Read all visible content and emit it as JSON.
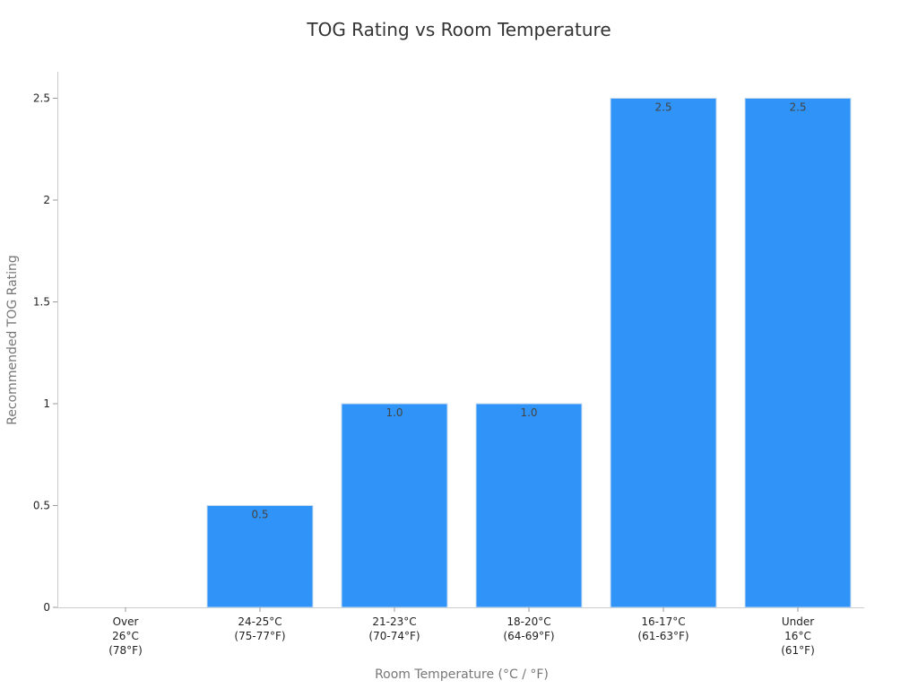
{
  "chart_data": {
    "type": "bar",
    "title": "TOG Rating vs Room Temperature",
    "xlabel": "Room Temperature (°C / °F)",
    "ylabel": "Recommended TOG Rating",
    "categories": [
      [
        "Over",
        "26°C",
        "(78°F)"
      ],
      [
        "24-25°C",
        "(75-77°F)"
      ],
      [
        "21-23°C",
        "(70-74°F)"
      ],
      [
        "18-20°C",
        "(64-69°F)"
      ],
      [
        "16-17°C",
        "(61-63°F)"
      ],
      [
        "Under",
        "16°C",
        "(61°F)"
      ]
    ],
    "values": [
      0,
      0.5,
      1.0,
      1.0,
      2.5,
      2.5
    ],
    "data_labels": [
      "",
      "0.5",
      "1.0",
      "1.0",
      "2.5",
      "2.5"
    ],
    "yticks": [
      "0",
      "0.5",
      "1",
      "1.5",
      "2",
      "2.5"
    ],
    "ytick_values": [
      0,
      0.5,
      1,
      1.5,
      2,
      2.5
    ],
    "ylim": [
      0,
      2.63
    ],
    "bar_color": "#2f93f7",
    "grid": false,
    "legend": "none"
  }
}
